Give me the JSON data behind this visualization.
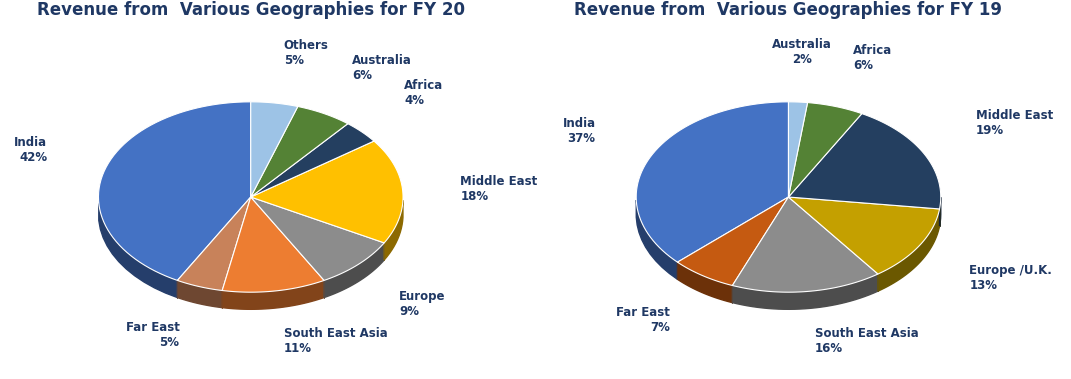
{
  "fy20": {
    "title": "Revenue from  Various Geographies for FY 20",
    "labels": [
      "India",
      "Far East",
      "South East Asia",
      "Europe",
      "Middle East",
      "Africa",
      "Australia",
      "Others"
    ],
    "values": [
      42,
      5,
      11,
      9,
      18,
      4,
      6,
      5
    ],
    "colors": [
      "#4472C4",
      "#C8825A",
      "#ED7D31",
      "#8C8C8C",
      "#FFC000",
      "#243F60",
      "#548235",
      "#9DC3E6"
    ],
    "pct_labels": [
      "42%",
      "5%",
      "11%",
      "9%",
      "18%",
      "4%",
      "6%",
      "5%"
    ]
  },
  "fy19": {
    "title": "Revenue from  Various Geographies for FY 19",
    "labels": [
      "India",
      "Far East",
      "South East Asia",
      "Europe /U.K.",
      "Middle East",
      "Africa",
      "Australia"
    ],
    "values": [
      37,
      7,
      16,
      13,
      19,
      6,
      2
    ],
    "colors": [
      "#4472C4",
      "#C55A11",
      "#8C8C8C",
      "#C4A000",
      "#243F60",
      "#548235",
      "#9DC3E6"
    ],
    "pct_labels": [
      "37%",
      "7%",
      "16%",
      "13%",
      "19%",
      "6%",
      "2%"
    ]
  },
  "background_color": "#FFFFFF",
  "title_fontsize": 12,
  "label_fontsize": 8.5,
  "label_color": "#1F3864"
}
